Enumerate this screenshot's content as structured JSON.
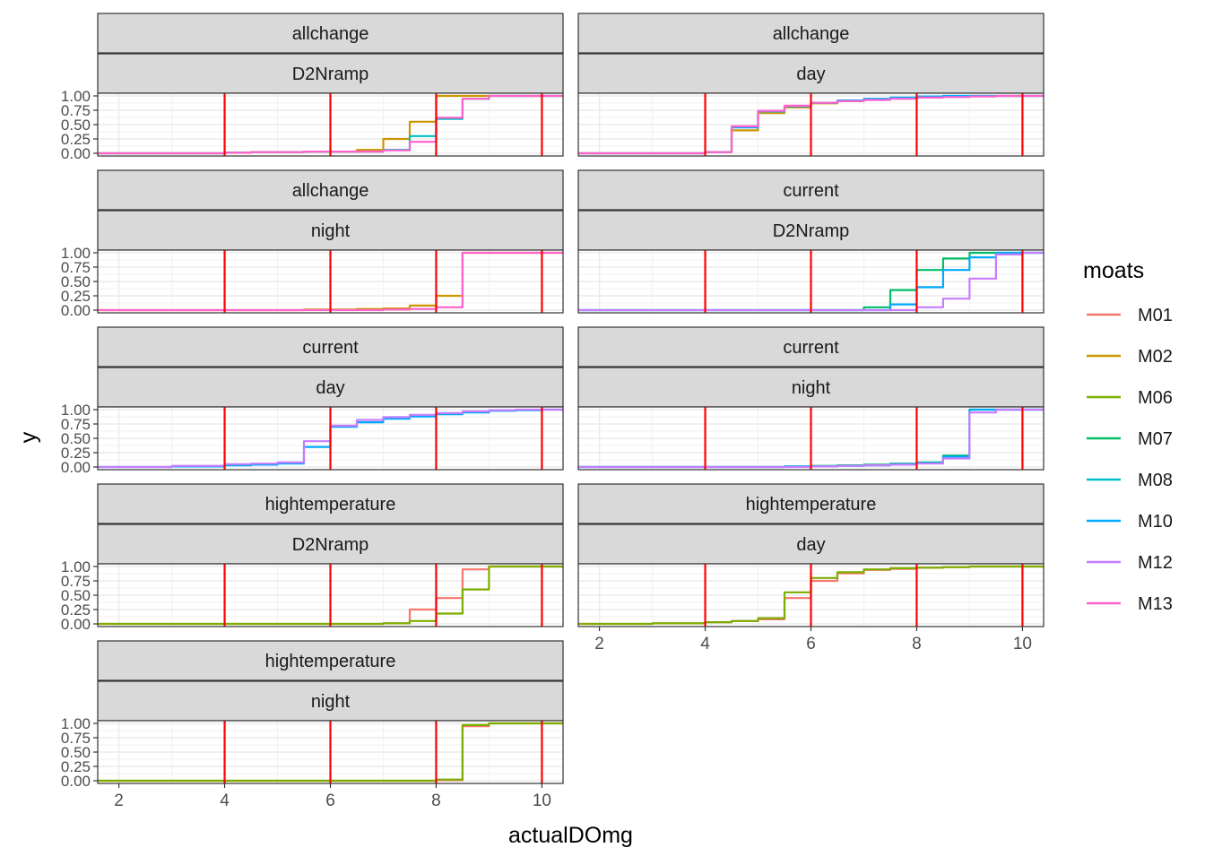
{
  "chart_data": {
    "type": "line",
    "stat": "empirical cumulative distribution (ecdf)",
    "xlabel": "actualDOmg",
    "ylabel": "y",
    "xlim": [
      1.6,
      10.4
    ],
    "ylim": [
      0,
      1
    ],
    "x_ticks": [
      2,
      4,
      6,
      8,
      10
    ],
    "x_tick_labels": [
      "2",
      "4",
      "6",
      "8",
      "10"
    ],
    "y_ticks": [
      0,
      0.25,
      0.5,
      0.75,
      1
    ],
    "y_tick_labels": [
      "0.00",
      "0.25",
      "0.50",
      "0.75",
      "1.00"
    ],
    "reference_lines": {
      "orientation": "vertical",
      "x": [
        4,
        6,
        8,
        10
      ],
      "color": "#ff0000"
    },
    "legend": {
      "title": "moats",
      "position": "right",
      "items": [
        {
          "name": "M01",
          "color": "#F8766D"
        },
        {
          "name": "M02",
          "color": "#CD9600"
        },
        {
          "name": "M06",
          "color": "#7CAE00"
        },
        {
          "name": "M07",
          "color": "#00BE67"
        },
        {
          "name": "M08",
          "color": "#00BFC4"
        },
        {
          "name": "M10",
          "color": "#00A9FF"
        },
        {
          "name": "M12",
          "color": "#C77CFF"
        },
        {
          "name": "M13",
          "color": "#FF61CC"
        }
      ]
    },
    "facet_x_values": [
      1.6,
      2,
      3,
      4,
      4.5,
      5,
      5.5,
      6,
      6.5,
      7,
      7.5,
      8,
      8.5,
      9,
      9.5,
      10,
      10.4
    ],
    "panels": [
      {
        "strip": [
          "allchange",
          "D2Nramp"
        ],
        "series": [
          {
            "name": "M02",
            "values": [
              0,
              0,
              0,
              0.01,
              0.02,
              0.02,
              0.03,
              0.03,
              0.06,
              0.25,
              0.55,
              1,
              1,
              1,
              1,
              1,
              1
            ]
          },
          {
            "name": "M08",
            "values": [
              0,
              0,
              0,
              0.01,
              0.02,
              0.02,
              0.03,
              0.03,
              0.03,
              0.06,
              0.3,
              0.6,
              0.95,
              1,
              1,
              1,
              1
            ]
          },
          {
            "name": "M13",
            "values": [
              0,
              0,
              0,
              0.01,
              0.02,
              0.02,
              0.03,
              0.03,
              0.03,
              0.05,
              0.2,
              0.62,
              0.95,
              1,
              1,
              1,
              1
            ]
          }
        ]
      },
      {
        "strip": [
          "allchange",
          "day"
        ],
        "series": [
          {
            "name": "M02",
            "values": [
              0,
              0,
              0,
              0.02,
              0.4,
              0.7,
              0.8,
              0.87,
              0.91,
              0.94,
              0.96,
              0.98,
              0.99,
              1,
              1,
              1,
              1
            ]
          },
          {
            "name": "M10",
            "values": [
              0,
              0,
              0,
              0.02,
              0.45,
              0.73,
              0.82,
              0.88,
              0.92,
              0.95,
              0.97,
              0.99,
              1,
              1,
              1,
              1,
              1
            ]
          },
          {
            "name": "M13",
            "values": [
              0,
              0,
              0,
              0.02,
              0.47,
              0.74,
              0.83,
              0.88,
              0.91,
              0.93,
              0.95,
              0.97,
              0.98,
              0.99,
              1,
              1,
              1
            ]
          }
        ]
      },
      {
        "strip": [
          "allchange",
          "night"
        ],
        "series": [
          {
            "name": "M02",
            "values": [
              0,
              0,
              0,
              0,
              0,
              0,
              0.01,
              0.01,
              0.02,
              0.03,
              0.08,
              0.25,
              1,
              1,
              1,
              1,
              1
            ]
          },
          {
            "name": "M13",
            "values": [
              0,
              0,
              0,
              0,
              0,
              0,
              0,
              0,
              0,
              0.01,
              0.02,
              0.05,
              1,
              1,
              1,
              1,
              1
            ]
          }
        ]
      },
      {
        "strip": [
          "current",
          "D2Nramp"
        ],
        "series": [
          {
            "name": "M07",
            "values": [
              0,
              0,
              0,
              0,
              0,
              0,
              0,
              0,
              0,
              0.05,
              0.35,
              0.7,
              0.9,
              1,
              1,
              1,
              1
            ]
          },
          {
            "name": "M10",
            "values": [
              0,
              0,
              0,
              0,
              0,
              0,
              0,
              0,
              0,
              0,
              0.1,
              0.4,
              0.7,
              0.92,
              1,
              1,
              1
            ]
          },
          {
            "name": "M12",
            "values": [
              0,
              0,
              0,
              0,
              0,
              0,
              0,
              0,
              0,
              0,
              0,
              0.05,
              0.2,
              0.55,
              0.97,
              1,
              1
            ]
          }
        ]
      },
      {
        "strip": [
          "current",
          "day"
        ],
        "series": [
          {
            "name": "M10",
            "values": [
              0,
              0,
              0.01,
              0.03,
              0.04,
              0.06,
              0.35,
              0.7,
              0.78,
              0.84,
              0.88,
              0.92,
              0.95,
              0.98,
              0.99,
              1,
              1
            ]
          },
          {
            "name": "M12",
            "values": [
              0,
              0,
              0.02,
              0.05,
              0.06,
              0.08,
              0.45,
              0.72,
              0.82,
              0.87,
              0.91,
              0.94,
              0.97,
              0.99,
              1,
              1,
              1
            ]
          }
        ]
      },
      {
        "strip": [
          "current",
          "night"
        ],
        "series": [
          {
            "name": "M07",
            "values": [
              0,
              0,
              0,
              0,
              0,
              0,
              0.01,
              0.02,
              0.03,
              0.04,
              0.06,
              0.08,
              0.2,
              1,
              1,
              1,
              1
            ]
          },
          {
            "name": "M10",
            "values": [
              0,
              0,
              0,
              0,
              0,
              0,
              0.01,
              0.01,
              0.02,
              0.03,
              0.05,
              0.07,
              0.18,
              1,
              1,
              1,
              1
            ]
          },
          {
            "name": "M12",
            "values": [
              0,
              0,
              0,
              0,
              0,
              0,
              0,
              0.01,
              0.02,
              0.03,
              0.04,
              0.06,
              0.15,
              0.95,
              1,
              1,
              1
            ]
          }
        ]
      },
      {
        "strip": [
          "hightemperature",
          "D2Nramp"
        ],
        "series": [
          {
            "name": "M01",
            "values": [
              0,
              0,
              0,
              0,
              0,
              0,
              0,
              0,
              0,
              0.01,
              0.25,
              0.45,
              0.95,
              1,
              1,
              1,
              1
            ]
          },
          {
            "name": "M06",
            "values": [
              0,
              0,
              0,
              0,
              0,
              0,
              0,
              0,
              0,
              0.01,
              0.05,
              0.18,
              0.6,
              1,
              1,
              1,
              1
            ]
          }
        ]
      },
      {
        "strip": [
          "hightemperature",
          "day"
        ],
        "series": [
          {
            "name": "M01",
            "values": [
              0,
              0,
              0.01,
              0.03,
              0.05,
              0.08,
              0.45,
              0.75,
              0.88,
              0.94,
              0.96,
              0.98,
              0.99,
              1,
              1,
              1,
              1
            ]
          },
          {
            "name": "M06",
            "values": [
              0,
              0,
              0.01,
              0.03,
              0.05,
              0.1,
              0.55,
              0.8,
              0.9,
              0.95,
              0.97,
              0.98,
              0.99,
              1,
              1,
              1,
              1
            ]
          }
        ]
      },
      {
        "strip": [
          "hightemperature",
          "night"
        ],
        "series": [
          {
            "name": "M01",
            "values": [
              0,
              0,
              0,
              0,
              0,
              0,
              0,
              0,
              0,
              0,
              0,
              0.01,
              0.95,
              1,
              1,
              1,
              1
            ]
          },
          {
            "name": "M06",
            "values": [
              0,
              0,
              0,
              0,
              0,
              0,
              0,
              0,
              0,
              0,
              0,
              0.02,
              0.97,
              1,
              1,
              1,
              1
            ]
          }
        ]
      }
    ]
  }
}
